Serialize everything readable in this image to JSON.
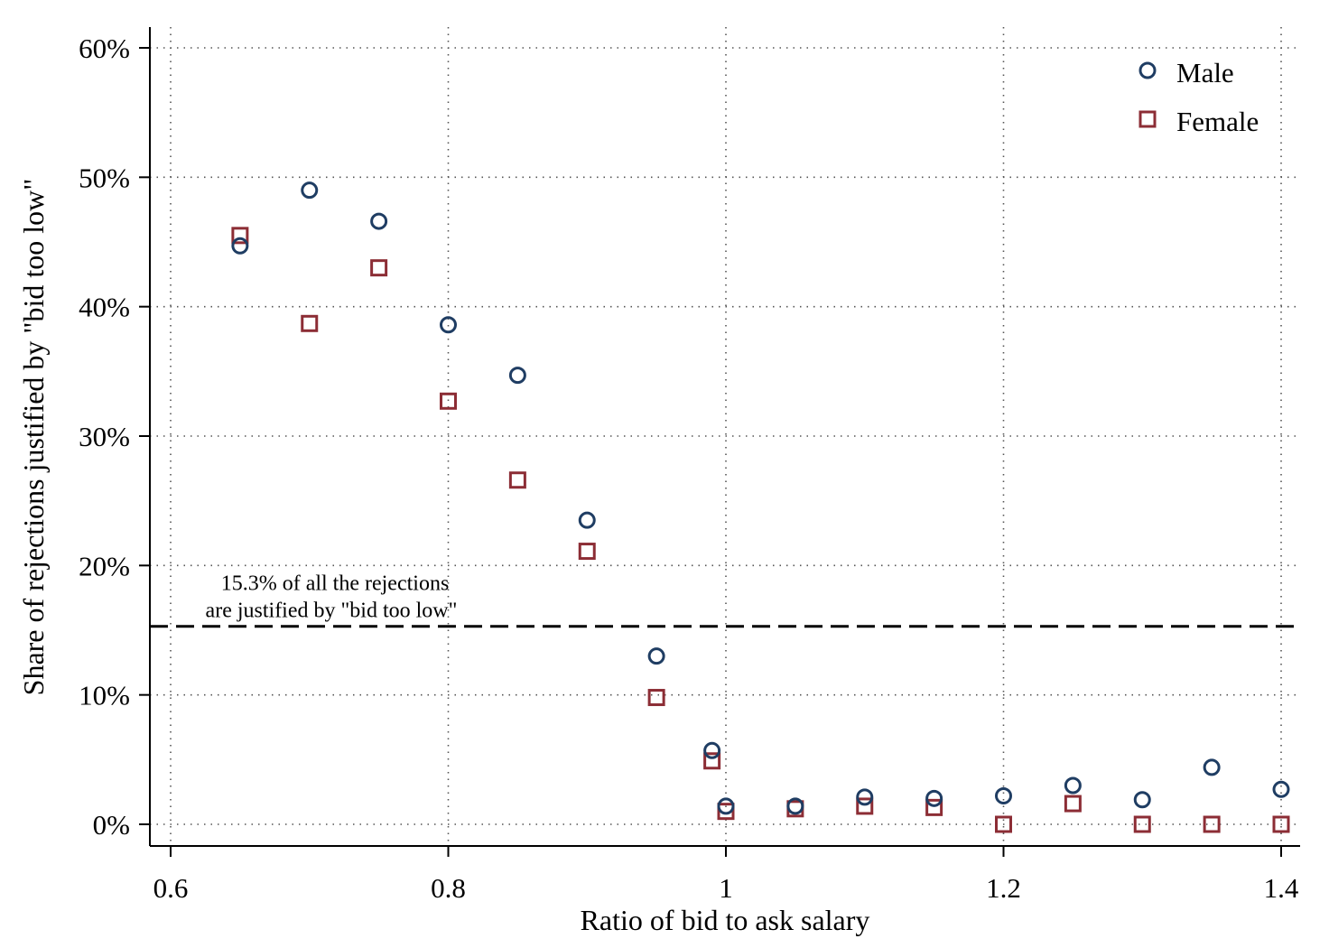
{
  "chart_data": {
    "type": "scatter",
    "xlabel": "Ratio of bid to ask salary",
    "ylabel": "Share of  rejections justified by \"bid too low\"",
    "xlim": [
      0.6,
      1.4
    ],
    "ylim": [
      0,
      60
    ],
    "xticks": [
      {
        "value": 0.6,
        "label": "0.6"
      },
      {
        "value": 0.8,
        "label": "0.8"
      },
      {
        "value": 1.0,
        "label": "1"
      },
      {
        "value": 1.2,
        "label": "1.2"
      },
      {
        "value": 1.4,
        "label": "1.4"
      }
    ],
    "yticks": [
      {
        "value": 0,
        "label": "0%"
      },
      {
        "value": 10,
        "label": "10%"
      },
      {
        "value": 20,
        "label": "20%"
      },
      {
        "value": 30,
        "label": "30%"
      },
      {
        "value": 40,
        "label": "40%"
      },
      {
        "value": 50,
        "label": "50%"
      },
      {
        "value": 60,
        "label": "60%"
      }
    ],
    "grid": true,
    "legend_position": "top-right",
    "series": [
      {
        "name": "Male",
        "marker": "circle",
        "color": "#1f3d63",
        "points": [
          [
            0.65,
            44.7
          ],
          [
            0.7,
            49.0
          ],
          [
            0.75,
            46.6
          ],
          [
            0.8,
            38.6
          ],
          [
            0.85,
            34.7
          ],
          [
            0.9,
            23.5
          ],
          [
            0.95,
            13.0
          ],
          [
            0.99,
            5.7
          ],
          [
            1.0,
            1.4
          ],
          [
            1.05,
            1.4
          ],
          [
            1.1,
            2.1
          ],
          [
            1.15,
            2.0
          ],
          [
            1.2,
            2.2
          ],
          [
            1.25,
            3.0
          ],
          [
            1.3,
            1.9
          ],
          [
            1.35,
            4.4
          ],
          [
            1.4,
            2.7
          ]
        ]
      },
      {
        "name": "Female",
        "marker": "square",
        "color": "#8c2d35",
        "points": [
          [
            0.65,
            45.5
          ],
          [
            0.7,
            38.7
          ],
          [
            0.75,
            43.0
          ],
          [
            0.8,
            32.7
          ],
          [
            0.85,
            26.6
          ],
          [
            0.9,
            21.1
          ],
          [
            0.95,
            9.8
          ],
          [
            0.99,
            4.9
          ],
          [
            1.0,
            1.0
          ],
          [
            1.05,
            1.2
          ],
          [
            1.1,
            1.4
          ],
          [
            1.15,
            1.3
          ],
          [
            1.2,
            0.0
          ],
          [
            1.25,
            1.6
          ],
          [
            1.3,
            0.0
          ],
          [
            1.35,
            0.0
          ],
          [
            1.4,
            0.0
          ]
        ]
      }
    ],
    "reference_line": {
      "value": 15.3,
      "style": "dashed",
      "annotation": [
        "15.3% of  all the rejections",
        "are justified by \"bid too low\""
      ]
    }
  }
}
